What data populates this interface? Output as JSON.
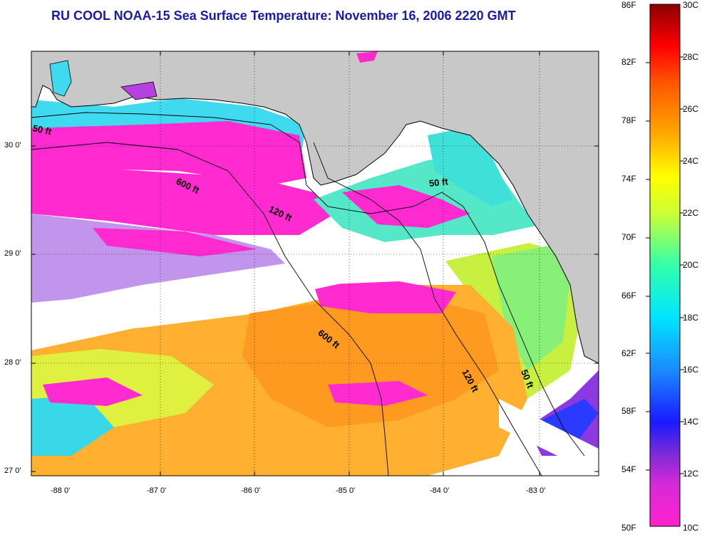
{
  "title": "RU COOL  NOAA-15  Sea Surface Temperature:  November 16, 2006 2220 GMT",
  "map": {
    "land_color": "#c8c8c8",
    "lat_labels": [
      "30 0'",
      "29 0'",
      "28 0'",
      "27 0'"
    ],
    "lon_labels": [
      "-88 0'",
      "-87 0'",
      "-86 0'",
      "-85 0'",
      "-84 0'",
      "-83 0'"
    ],
    "contour_labels": [
      "50 ft",
      "600 ft",
      "120 ft",
      "50 ft",
      "600 ft",
      "120 ft",
      "50 ft"
    ]
  },
  "colorbar": {
    "fahrenheit_labels": [
      "86F",
      "82F",
      "78F",
      "74F",
      "70F",
      "66F",
      "62F",
      "58F",
      "54F",
      "50F"
    ],
    "celsius_labels": [
      "30C",
      "28C",
      "26C",
      "24C",
      "22C",
      "20C",
      "18C",
      "16C",
      "14C",
      "12C",
      "10C"
    ],
    "colors": [
      "#ff22cc",
      "#7a2bd6",
      "#1a1aff",
      "#1a8cff",
      "#00e5ff",
      "#33ffaa",
      "#ccff33",
      "#ffff00",
      "#ffaa00",
      "#ff5500",
      "#ff0000",
      "#8b0000"
    ]
  }
}
